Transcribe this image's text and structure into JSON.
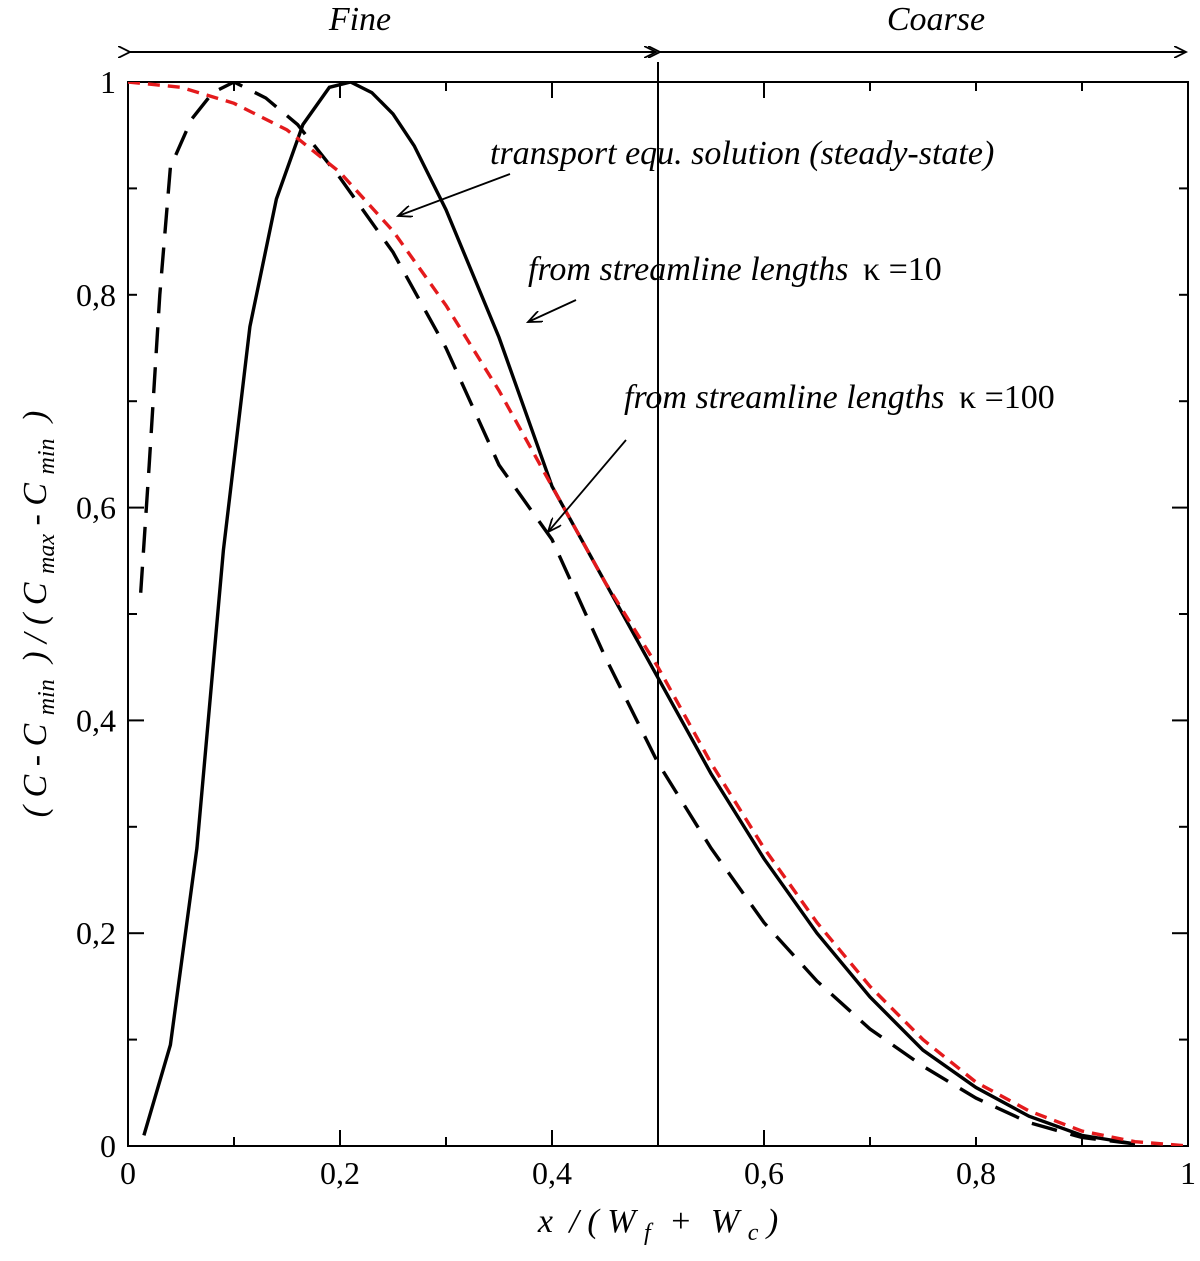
{
  "chart_data": {
    "type": "line",
    "title": "",
    "xlabel": {
      "x": "x",
      "slash": "/ (",
      "W": "W",
      "f": "f",
      "plus": "+",
      "W2": "W",
      "c": "c",
      "close": ")"
    },
    "ylabel": {
      "open": "(",
      "C1": "C",
      "dash1": "-",
      "C2": "C",
      "min1": "min",
      "mid": ") / (",
      "C3": "C",
      "max": "max",
      "dash2": "-",
      "C4": "C",
      "min2": "min",
      "close": ")"
    },
    "xlim": [
      0,
      1
    ],
    "ylim": [
      0,
      1
    ],
    "x_ticks": [
      0,
      0.2,
      0.4,
      0.6,
      0.8,
      1
    ],
    "x_tick_labels": [
      "0",
      "0,2",
      "0,4",
      "0,6",
      "0,8",
      "1"
    ],
    "y_ticks": [
      0,
      0.2,
      0.4,
      0.6,
      0.8,
      1
    ],
    "y_tick_labels": [
      "0",
      "0,2",
      "0,4",
      "0,6",
      "0,8",
      "1"
    ],
    "divider_x": 0.5,
    "regions": [
      {
        "label": "Fine",
        "from": 0,
        "to": 0.5
      },
      {
        "label": "Coarse",
        "from": 0.5,
        "to": 1
      }
    ],
    "series": [
      {
        "name": "transport equ. solution (steady-state)",
        "color": "#e41a1c",
        "style": "dashed-short",
        "x": [
          0,
          0.05,
          0.1,
          0.15,
          0.2,
          0.25,
          0.3,
          0.35,
          0.4,
          0.45,
          0.5,
          0.55,
          0.6,
          0.65,
          0.7,
          0.75,
          0.8,
          0.85,
          0.9,
          0.95,
          1.0
        ],
        "y": [
          1.0,
          0.995,
          0.98,
          0.955,
          0.915,
          0.86,
          0.79,
          0.71,
          0.62,
          0.53,
          0.45,
          0.36,
          0.28,
          0.21,
          0.15,
          0.1,
          0.06,
          0.033,
          0.014,
          0.004,
          0.0
        ]
      },
      {
        "name": "from streamline lengths κ=10",
        "color": "#000000",
        "style": "solid",
        "x": [
          0.015,
          0.04,
          0.065,
          0.09,
          0.115,
          0.14,
          0.165,
          0.19,
          0.21,
          0.23,
          0.25,
          0.27,
          0.3,
          0.35,
          0.4,
          0.45,
          0.5,
          0.55,
          0.6,
          0.65,
          0.7,
          0.75,
          0.8,
          0.85,
          0.9,
          0.95
        ],
        "y": [
          0.01,
          0.095,
          0.28,
          0.56,
          0.77,
          0.89,
          0.96,
          0.995,
          1.0,
          0.99,
          0.97,
          0.94,
          0.88,
          0.76,
          0.62,
          0.53,
          0.44,
          0.35,
          0.27,
          0.2,
          0.14,
          0.09,
          0.055,
          0.028,
          0.01,
          0.002
        ]
      },
      {
        "name": "from streamline lengths κ=100",
        "color": "#000000",
        "style": "dashed-long",
        "x": [
          0.012,
          0.02,
          0.03,
          0.04,
          0.06,
          0.08,
          0.1,
          0.13,
          0.16,
          0.2,
          0.25,
          0.3,
          0.35,
          0.4,
          0.45,
          0.5,
          0.55,
          0.6,
          0.65,
          0.7,
          0.75,
          0.8,
          0.85,
          0.9,
          0.95
        ],
        "y": [
          0.52,
          0.64,
          0.8,
          0.92,
          0.965,
          0.99,
          1.0,
          0.985,
          0.96,
          0.91,
          0.84,
          0.75,
          0.64,
          0.57,
          0.46,
          0.36,
          0.28,
          0.21,
          0.155,
          0.11,
          0.075,
          0.045,
          0.022,
          0.008,
          0.002
        ]
      }
    ],
    "annotations": [
      {
        "text": "transport equ. solution (steady-state)",
        "target": "red curve"
      },
      {
        "prefix": "from streamline lengths",
        "kappa": "κ",
        "value": "=10",
        "target": "solid curve"
      },
      {
        "prefix": "from streamline lengths",
        "kappa": "κ",
        "value": "=100",
        "target": "long-dashed curve"
      }
    ]
  }
}
